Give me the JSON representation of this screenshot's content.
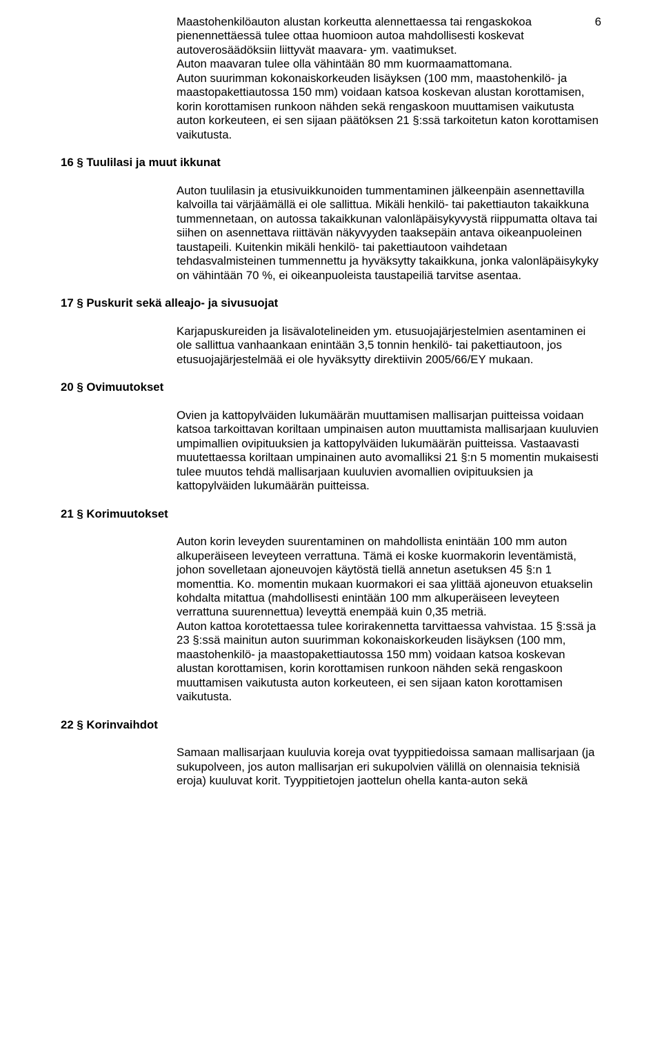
{
  "page_number": "6",
  "colors": {
    "text": "#000000",
    "background": "#ffffff"
  },
  "intro": {
    "p1": "Maastohenkilöauton alustan korkeutta alennettaessa tai rengaskokoa pienennettäessä tulee ottaa huomioon autoa mahdollisesti koskevat autoverosäädöksiin liittyvät maavara- ym. vaatimukset.",
    "p2": "Auton maavaran tulee olla vähintään 80 mm kuormaamattomana.",
    "p3": "Auton suurimman kokonaiskorkeuden lisäyksen (100 mm, maastohenkilö- ja maastopakettiautossa 150 mm) voidaan katsoa koskevan alustan korottamisen, korin korottamisen runkoon nähden sekä rengaskoon muuttamisen vaikutusta auton korkeuteen, ei sen sijaan päätöksen 21 §:ssä tarkoitetun katon korottamisen vaikutusta."
  },
  "s16": {
    "heading": "16 § Tuulilasi ja muut ikkunat",
    "p1": "Auton tuulilasin ja etusivuikkunoiden tummentaminen jälkeenpäin asennettavilla kalvoilla tai värjäämällä ei ole sallittua. Mikäli henkilö- tai pakettiauton takaikkuna tummennetaan, on autossa takaikkunan valonläpäisykyvystä riippumatta oltava tai siihen on asennettava riittävän näkyvyyden taaksepäin antava oikeanpuoleinen taustapeili. Kuitenkin mikäli henkilö- tai pakettiautoon vaihdetaan tehdasvalmisteinen tummennettu ja hyväksytty takaikkuna, jonka valonläpäisykyky on vähintään 70 %, ei oikeanpuoleista taustapeiliä tarvitse asentaa."
  },
  "s17": {
    "heading": "17 § Puskurit sekä alleajo- ja sivusuojat",
    "p1": "Karjapuskureiden ja lisävalotelineiden ym. etusuojajärjestelmien asentaminen ei ole sallittua vanhaankaan enintään 3,5 tonnin henkilö- tai pakettiautoon, jos etusuojajärjestelmää ei ole hyväksytty direktiivin 2005/66/EY mukaan."
  },
  "s20": {
    "heading": "20 § Ovimuutokset",
    "p1": "Ovien ja kattopylväiden lukumäärän muuttamisen mallisarjan puitteissa voidaan katsoa tarkoittavan koriltaan umpinaisen auton muuttamista mallisarjaan kuuluvien umpimallien ovipituuksien ja kattopylväiden lukumäärän puitteissa. Vastaavasti muutettaessa koriltaan umpinainen auto avomalliksi 21 §:n 5 momentin mukaisesti tulee muutos tehdä mallisarjaan kuuluvien avomallien ovipituuksien ja kattopylväiden lukumäärän puitteissa."
  },
  "s21": {
    "heading": "21 § Korimuutokset",
    "p1": "Auton korin leveyden suurentaminen on mahdollista enintään 100 mm auton alkuperäiseen leveyteen verrattuna. Tämä ei koske kuormakorin leventämistä, johon sovelletaan ajoneuvojen käytöstä tiellä annetun asetuksen 45 §:n 1 momenttia. Ko. momentin mukaan kuormakori ei saa ylittää ajoneuvon etuakselin kohdalta mitattua (mahdollisesti enintään 100 mm alkuperäiseen leveyteen verrattuna suurennettua) leveyttä enempää kuin 0,35 metriä.",
    "p2": "Auton kattoa korotettaessa tulee korirakennetta tarvittaessa vahvistaa. 15 §:ssä ja 23 §:ssä mainitun auton suurimman kokonaiskorkeuden lisäyksen (100 mm, maastohenkilö- ja maastopakettiautossa 150 mm) voidaan katsoa koskevan alustan korottamisen, korin korottamisen runkoon nähden sekä rengaskoon muuttamisen vaikutusta auton korkeuteen, ei sen sijaan katon korottamisen vaikutusta."
  },
  "s22": {
    "heading": "22 § Korinvaihdot",
    "p1": "Samaan mallisarjaan kuuluvia koreja ovat tyyppitiedoissa samaan mallisarjaan (ja sukupolveen, jos auton mallisarjan eri sukupolvien välillä on olennaisia teknisiä eroja) kuuluvat korit. Tyyppitietojen jaottelun ohella kanta-auton sekä"
  }
}
